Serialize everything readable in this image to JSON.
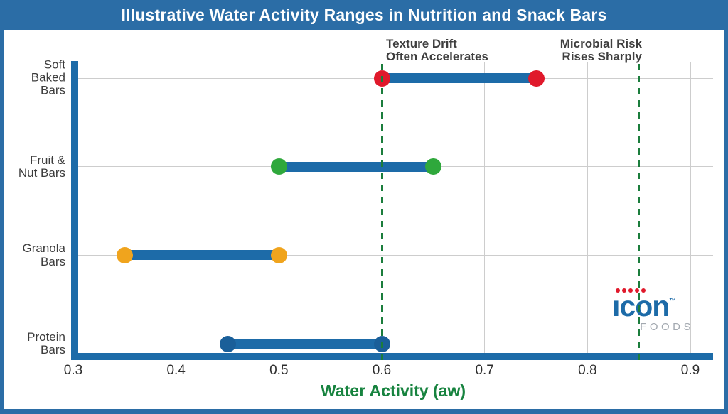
{
  "title": "Illustrative Water Activity Ranges in Nutrition and Snack Bars",
  "colors": {
    "banner": "#2b6da6",
    "bar": "#1d6ba8",
    "grid": "#cdcdcd",
    "dashed_guide": "#1b7d3c",
    "axis_label_green": "#17833f",
    "soft_baked_endpoint": "#e0192b",
    "fruit_nut_endpoint": "#2fa83c",
    "granola_endpoint": "#f0a41d",
    "protein_endpoint": "#1a5f99"
  },
  "chart_data": {
    "type": "bar",
    "subtype": "horizontal_range",
    "title": "Illustrative Water Activity Ranges in Nutrition and Snack Bars",
    "xlabel": "Water Activity (aw)",
    "xlim": [
      0.3,
      0.92
    ],
    "grid": true,
    "x_ticks": [
      "0.3",
      "0.4",
      "0.5",
      "0.6",
      "0.7",
      "0.8",
      "0.9"
    ],
    "categories": [
      {
        "name": "Soft Baked Bars",
        "label_lines": "Soft\nBaked\nBars",
        "range": [
          0.6,
          0.75
        ],
        "endpoint_color": "#e0192b"
      },
      {
        "name": "Fruit & Nut Bars",
        "label_lines": "Fruit &\nNut Bars",
        "range": [
          0.5,
          0.65
        ],
        "endpoint_color": "#2fa83c"
      },
      {
        "name": "Granola Bars",
        "label_lines": "Granola\nBars",
        "range": [
          0.35,
          0.5
        ],
        "endpoint_color": "#f0a41d"
      },
      {
        "name": "Protein Bars",
        "label_lines": "Protein\nBars",
        "range": [
          0.45,
          0.6
        ],
        "endpoint_color": "#1a5f99"
      }
    ],
    "guides": [
      {
        "x": 0.6,
        "label_line1": "Texture Drift",
        "label_line2": "Often Accelerates"
      },
      {
        "x": 0.85,
        "label_line1": "Microbial Risk",
        "label_line2": "Rises Sharply"
      }
    ]
  },
  "logo": {
    "brand": "ıcon",
    "tm": "™",
    "sub": "FOODS"
  }
}
